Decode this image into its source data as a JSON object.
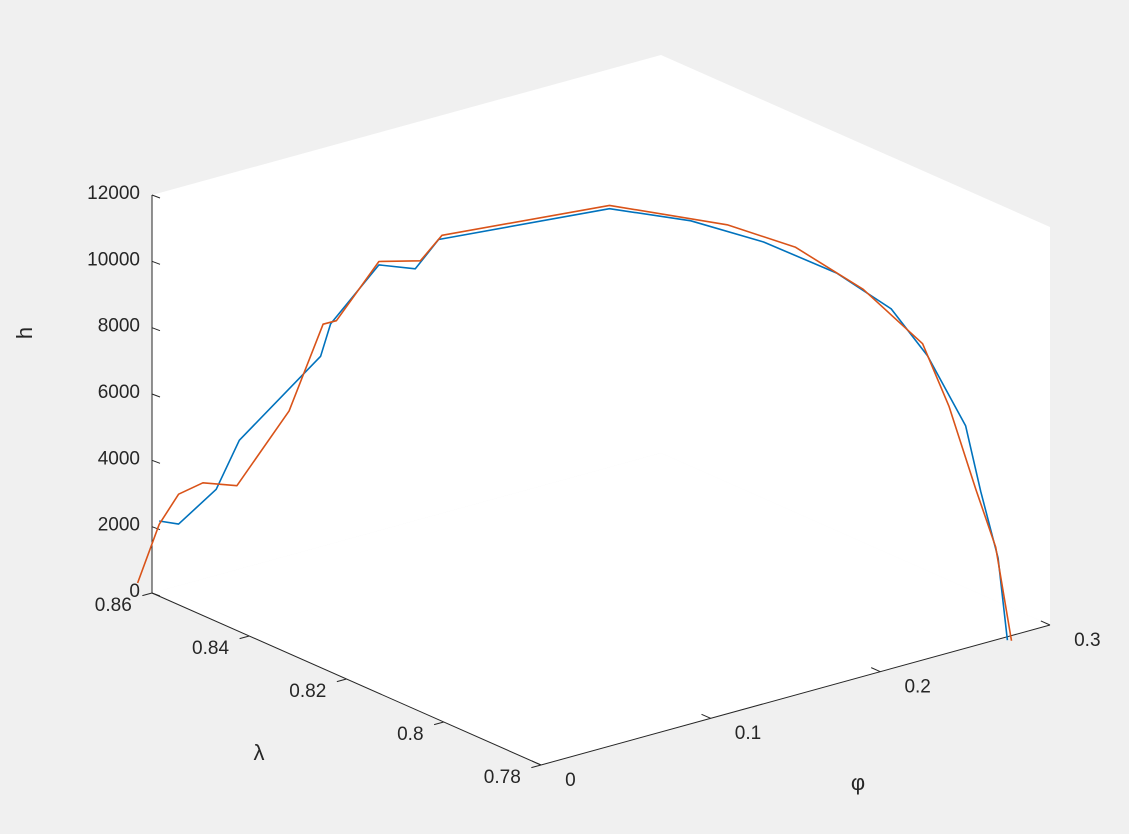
{
  "chart_data": {
    "type": "line",
    "view": "3d",
    "title": "",
    "xlabel": "φ",
    "ylabel": "λ",
    "zlabel": "h",
    "xlim": [
      0,
      0.3
    ],
    "ylim": [
      0.78,
      0.86
    ],
    "zlim": [
      0,
      12000
    ],
    "x_ticks": [
      0,
      0.1,
      0.2,
      0.3
    ],
    "x_tick_labels": [
      "0",
      "0.1",
      "0.2",
      "0.3"
    ],
    "y_ticks": [
      0.78,
      0.8,
      0.82,
      0.84,
      0.86
    ],
    "y_tick_labels": [
      "0.78",
      "0.8",
      "0.82",
      "0.84",
      "0.86"
    ],
    "z_ticks": [
      0,
      2000,
      4000,
      6000,
      8000,
      10000,
      12000
    ],
    "z_tick_labels": [
      "0",
      "2000",
      "4000",
      "6000",
      "8000",
      "10000",
      "12000"
    ],
    "grid": false,
    "series": [
      {
        "color": "#0072bd",
        "points": [
          [
            0.01,
            0.862,
            1900
          ],
          [
            0.02,
            0.8615,
            1700
          ],
          [
            0.035,
            0.859,
            2700
          ],
          [
            0.04,
            0.856,
            4300
          ],
          [
            0.065,
            0.848,
            7000
          ],
          [
            0.068,
            0.847,
            8000
          ],
          [
            0.085,
            0.843,
            9800
          ],
          [
            0.095,
            0.839,
            9800
          ],
          [
            0.103,
            0.837,
            10700
          ],
          [
            0.155,
            0.82,
            12000
          ],
          [
            0.18,
            0.812,
            11800
          ],
          [
            0.2,
            0.804,
            11400
          ],
          [
            0.22,
            0.796,
            10700
          ],
          [
            0.235,
            0.79,
            9800
          ],
          [
            0.245,
            0.786,
            8500
          ],
          [
            0.256,
            0.782,
            6500
          ],
          [
            0.262,
            0.781,
            4500
          ],
          [
            0.268,
            0.7795,
            2500
          ],
          [
            0.272,
            0.779,
            0
          ]
        ]
      },
      {
        "color": "#d95319",
        "points": [
          [
            0.003,
            0.864,
            0
          ],
          [
            0.01,
            0.862,
            1800
          ],
          [
            0.02,
            0.8615,
            2600
          ],
          [
            0.03,
            0.86,
            2900
          ],
          [
            0.04,
            0.8565,
            2900
          ],
          [
            0.055,
            0.851,
            5300
          ],
          [
            0.065,
            0.8475,
            8000
          ],
          [
            0.07,
            0.8465,
            8100
          ],
          [
            0.085,
            0.843,
            9900
          ],
          [
            0.098,
            0.839,
            10000
          ],
          [
            0.105,
            0.837,
            10800
          ],
          [
            0.155,
            0.82,
            12100
          ],
          [
            0.19,
            0.808,
            11800
          ],
          [
            0.21,
            0.801,
            11300
          ],
          [
            0.23,
            0.794,
            10200
          ],
          [
            0.245,
            0.787,
            8800
          ],
          [
            0.252,
            0.784,
            7000
          ],
          [
            0.262,
            0.782,
            4500
          ],
          [
            0.268,
            0.78,
            2800
          ],
          [
            0.273,
            0.7785,
            0
          ]
        ]
      }
    ]
  }
}
